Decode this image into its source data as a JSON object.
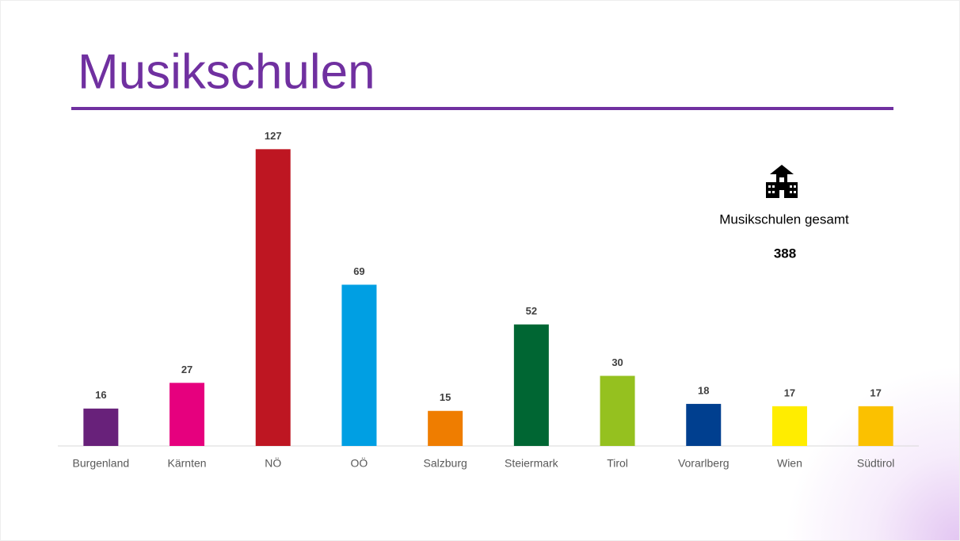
{
  "chart_data": {
    "type": "bar",
    "title": "Musikschulen",
    "categories": [
      "Burgenland",
      "Kärnten",
      "NÖ",
      "OÖ",
      "Salzburg",
      "Steiermark",
      "Tirol",
      "Vorarlberg",
      "Wien",
      "Südtirol"
    ],
    "values": [
      16,
      27,
      127,
      69,
      15,
      52,
      30,
      18,
      17,
      17
    ],
    "colors": [
      "#68217a",
      "#e6007e",
      "#be1622",
      "#009fe3",
      "#ef7d00",
      "#006633",
      "#95c11f",
      "#003f8f",
      "#ffed00",
      "#fbc100"
    ],
    "ylim": [
      0,
      140
    ],
    "annotation": {
      "label": "Musikschulen gesamt",
      "value": 388
    }
  }
}
